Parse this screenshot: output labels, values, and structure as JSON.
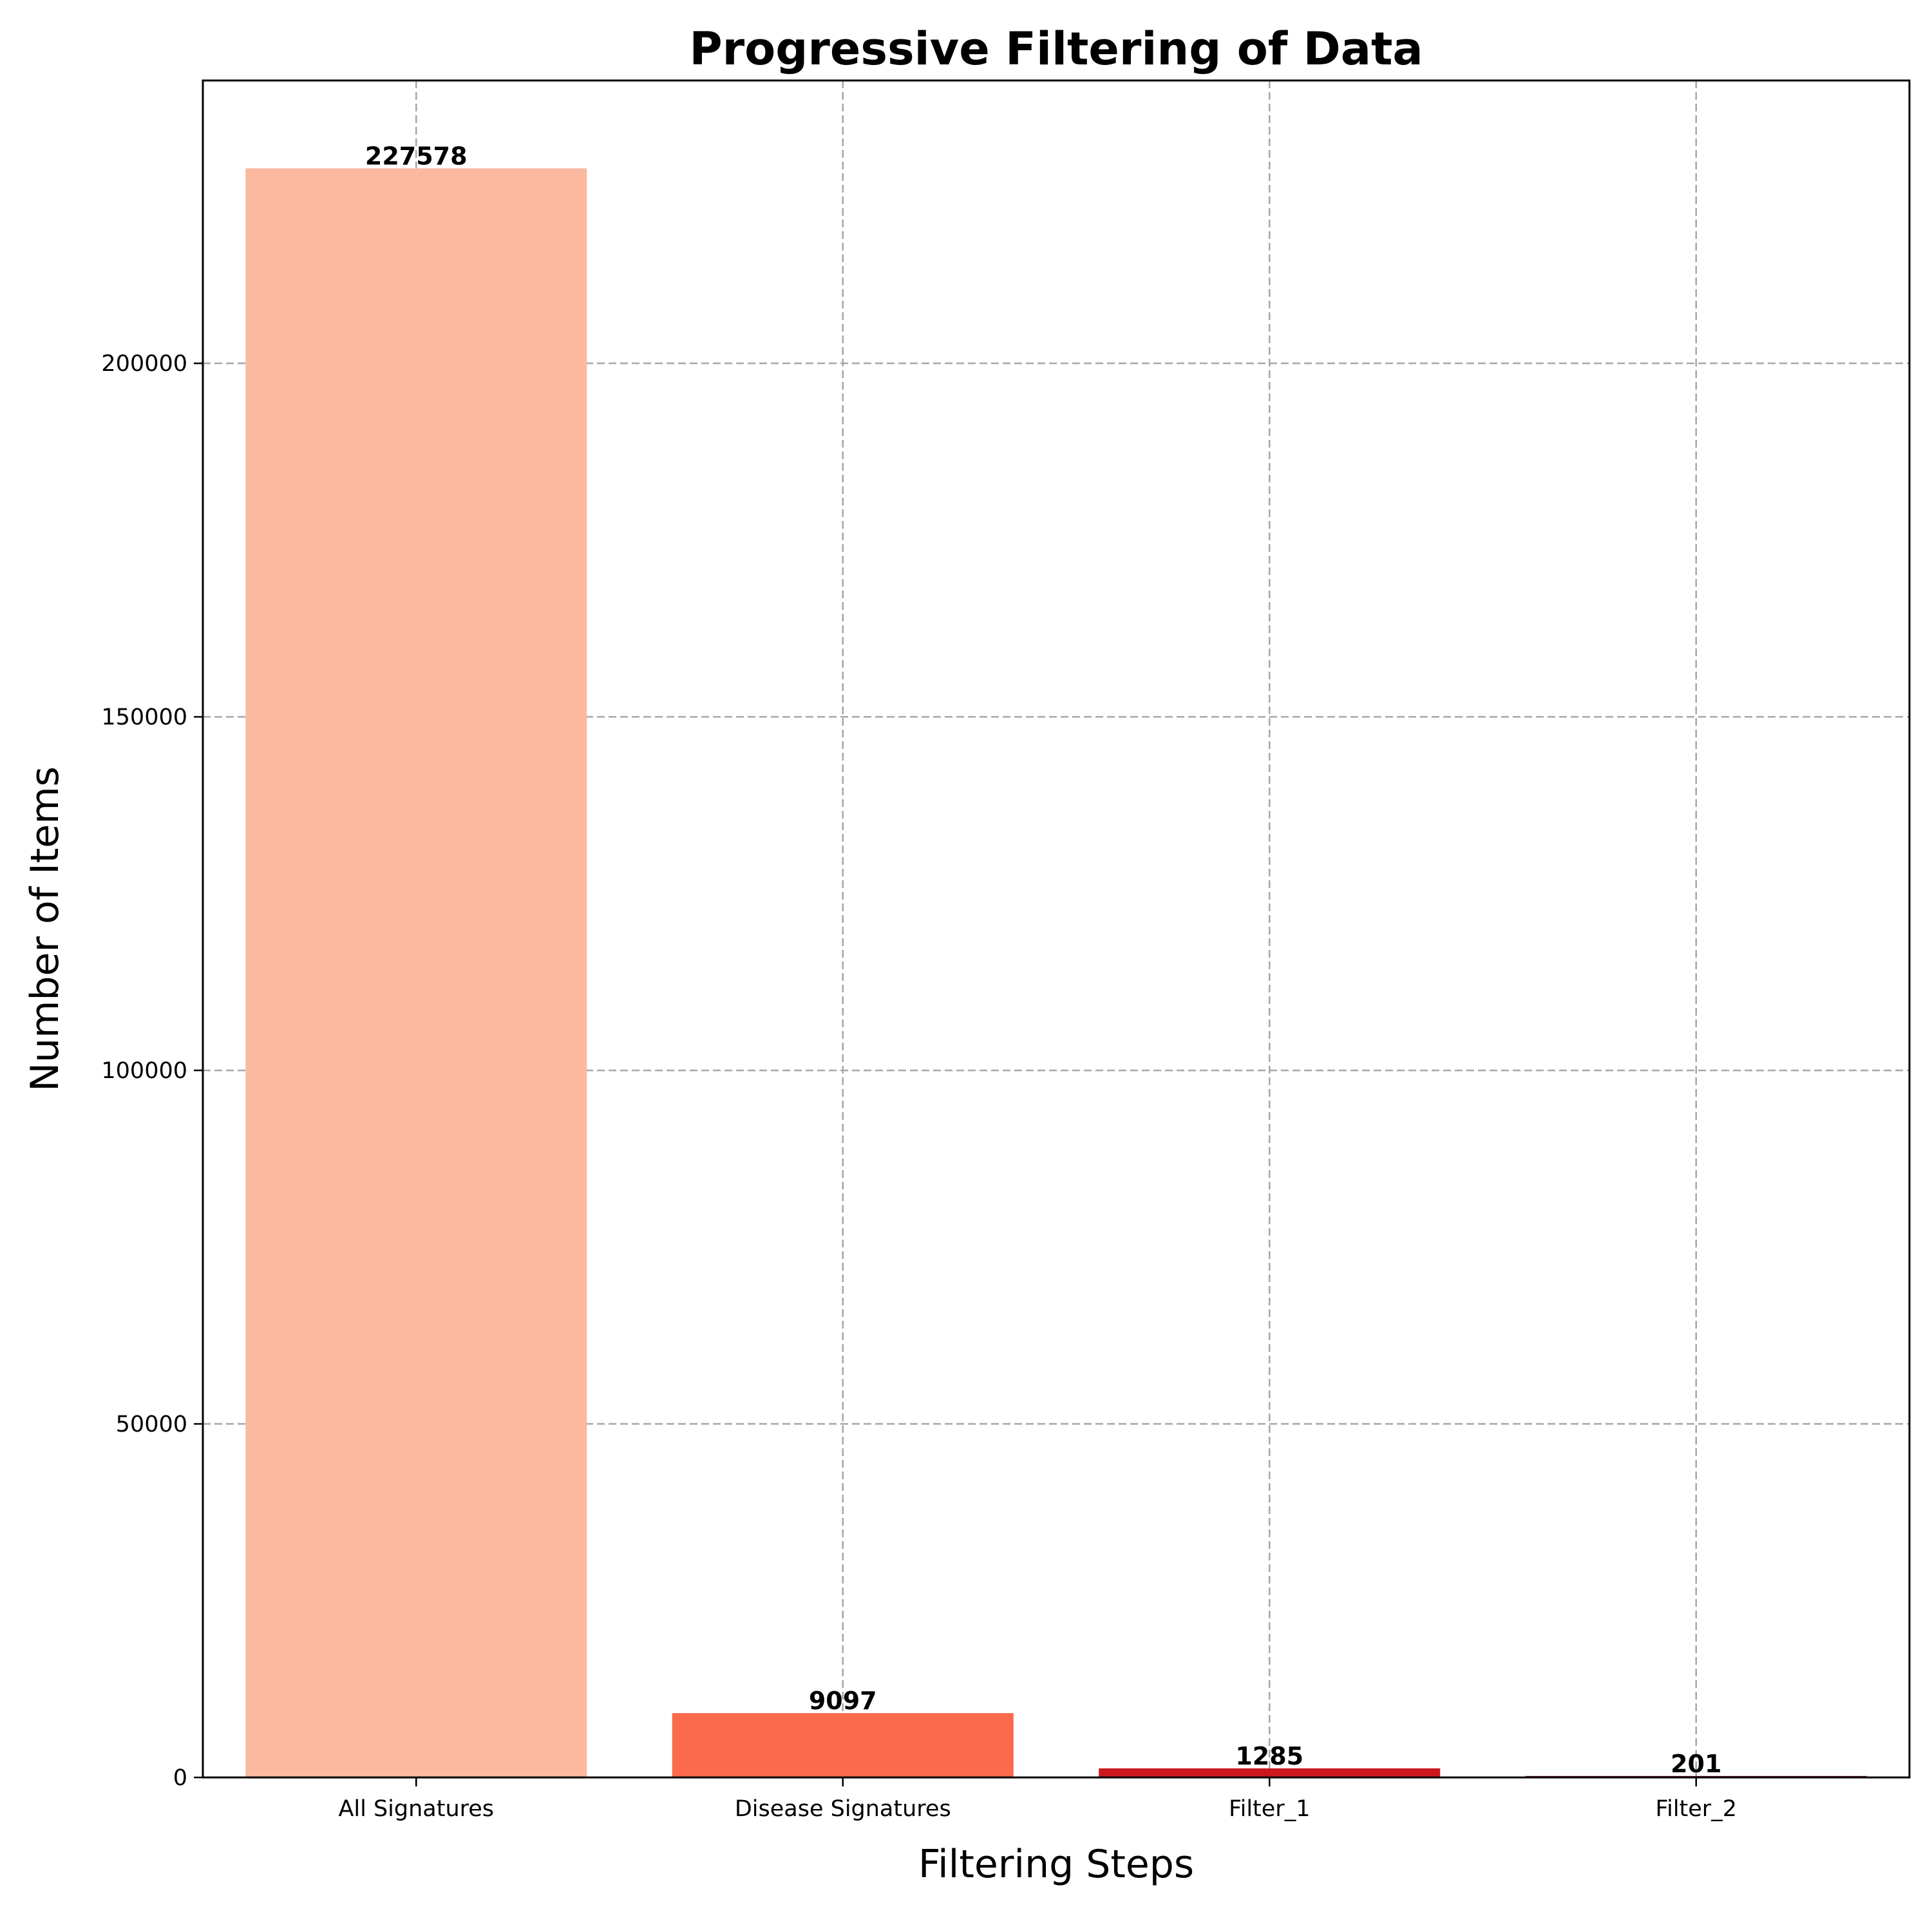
{
  "chart_data": {
    "type": "bar",
    "title": "Progressive Filtering of Data",
    "xlabel": "Filtering Steps",
    "ylabel": "Number of Items",
    "categories": [
      "All Signatures",
      "Disease Signatures",
      "Filter_1",
      "Filter_2"
    ],
    "values": [
      227578,
      9097,
      1285,
      201
    ],
    "value_labels": [
      "227578",
      "9097",
      "1285",
      "201"
    ],
    "colors": [
      "#fbb9a0",
      "#fb6a4a",
      "#cb181d",
      "#67000d"
    ],
    "ylim": [
      0,
      240000
    ],
    "yticks": [
      0,
      50000,
      100000,
      150000,
      200000
    ],
    "ytick_labels": [
      "0",
      "50000",
      "100000",
      "150000",
      "200000"
    ],
    "grid": true,
    "legend": false
  }
}
